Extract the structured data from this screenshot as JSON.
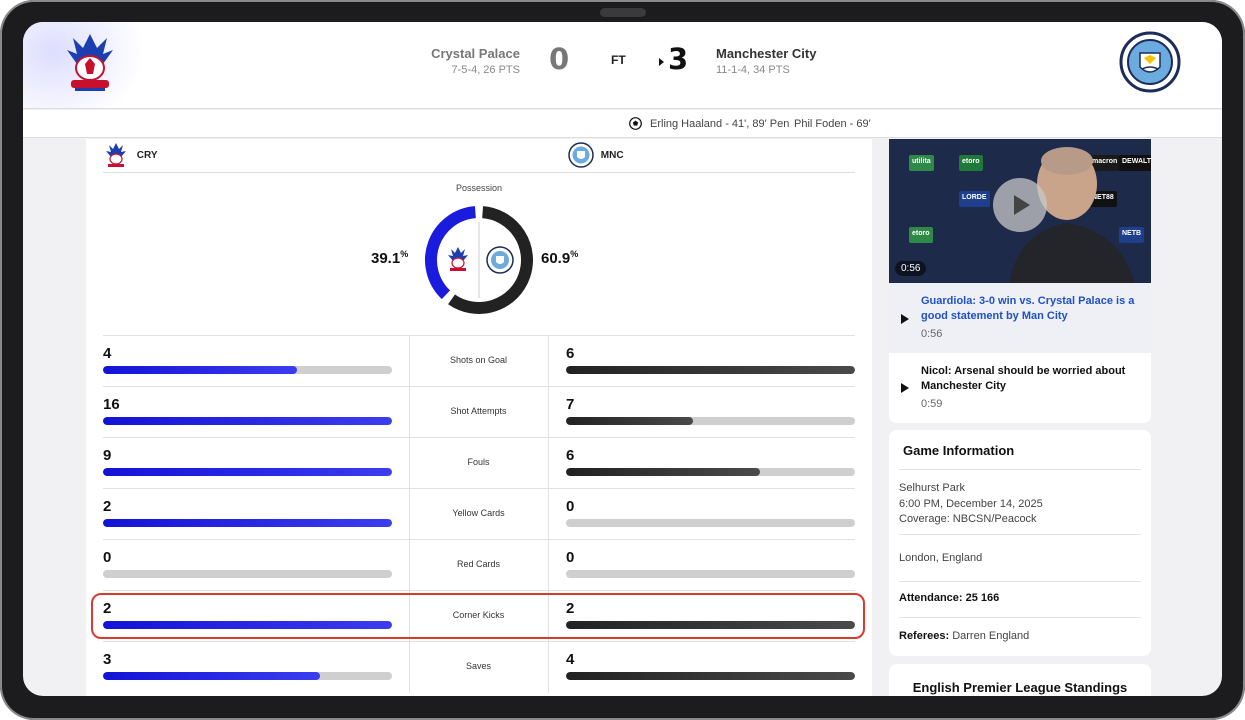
{
  "match": {
    "home_team": "Crystal Palace",
    "home_record": "7-5-4, 26 PTS",
    "home_score": "0",
    "status": "FT",
    "away_score": "3",
    "away_team": "Manchester City",
    "away_record": "11-1-4, 34 PTS",
    "scorers": [
      "Erling Haaland - 41', 89' Pen",
      "Phil Foden - 69'"
    ]
  },
  "colors": {
    "home": "#1b1bde",
    "away": "#222222",
    "highlight": "#d83a2e"
  },
  "stats_header": {
    "home_abbr": "CRY",
    "away_abbr": "MNC"
  },
  "possession": {
    "label": "Possession",
    "home_value": "39.1",
    "away_value": "60.9",
    "unit": "%",
    "home_fraction": 0.391,
    "away_fraction": 0.609
  },
  "stats": [
    {
      "label": "Shots on Goal",
      "home": "4",
      "away": "6",
      "home_fill": 0.67,
      "away_fill": 1.0
    },
    {
      "label": "Shot Attempts",
      "home": "16",
      "away": "7",
      "home_fill": 1.0,
      "away_fill": 0.44
    },
    {
      "label": "Fouls",
      "home": "9",
      "away": "6",
      "home_fill": 1.0,
      "away_fill": 0.67
    },
    {
      "label": "Yellow Cards",
      "home": "2",
      "away": "0",
      "home_fill": 1.0,
      "away_fill": 0.0
    },
    {
      "label": "Red Cards",
      "home": "0",
      "away": "0",
      "home_fill": 0.0,
      "away_fill": 0.0
    },
    {
      "label": "Corner Kicks",
      "home": "2",
      "away": "2",
      "home_fill": 1.0,
      "away_fill": 1.0
    },
    {
      "label": "Saves",
      "home": "3",
      "away": "4",
      "home_fill": 0.75,
      "away_fill": 1.0
    }
  ],
  "videos": {
    "thumb_duration": "0:56",
    "items": [
      {
        "title": "Guardiola: 3-0 win vs. Crystal Palace is a good statement by Man City",
        "duration": "0:56",
        "active": true
      },
      {
        "title": "Nicol: Arsenal should be worried about Manchester City",
        "duration": "0:59",
        "active": false
      }
    ],
    "sponsors": [
      "utilita",
      "etoro",
      "macron",
      "DEWALT",
      "LORDE",
      "NET88",
      "etoro",
      "NETB"
    ]
  },
  "game_info": {
    "title": "Game Information",
    "venue": "Selhurst Park",
    "datetime": "6:00 PM, December 14, 2025",
    "coverage": "Coverage: NBCSN/Peacock",
    "location": "London, England",
    "attendance_label": "Attendance:",
    "attendance_value": "25 166",
    "referees_label": "Referees:",
    "referees_value": "Darren England"
  },
  "standings": {
    "title": "English Premier League Standings"
  }
}
